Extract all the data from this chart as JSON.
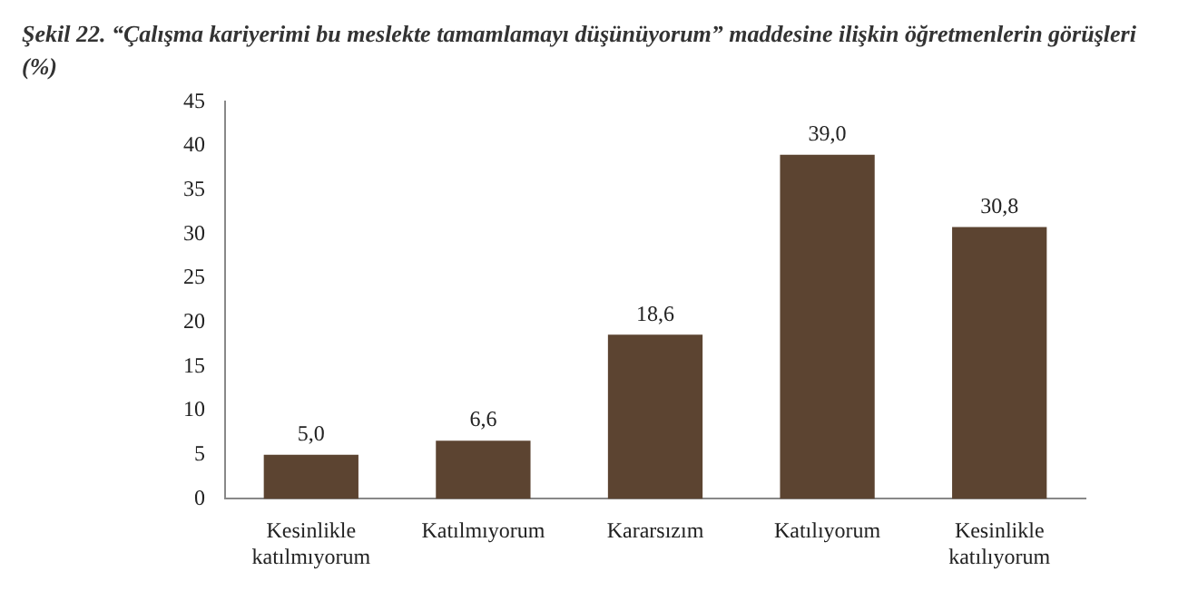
{
  "chart_data": {
    "type": "bar",
    "title": "Şekil 22. “Çalışma kariyerimi bu meslekte tamamlamayı düşünüyorum” maddesine ilişkin öğretmenlerin görüşleri (%)",
    "categories": [
      "Kesinlikle katılmıyorum",
      "Katılmıyorum",
      "Kararsızım",
      "Katılıyorum",
      "Kesinlikle katılıyorum"
    ],
    "values": [
      5.0,
      6.6,
      18.6,
      39.0,
      30.8
    ],
    "value_labels": [
      "5,0",
      "6,6",
      "18,6",
      "39,0",
      "30,8"
    ],
    "color": "#5c4431",
    "ylim": [
      0,
      45
    ],
    "yticks": [
      0,
      5,
      10,
      15,
      20,
      25,
      30,
      35,
      40,
      45
    ],
    "grid": false,
    "legend": false
  }
}
